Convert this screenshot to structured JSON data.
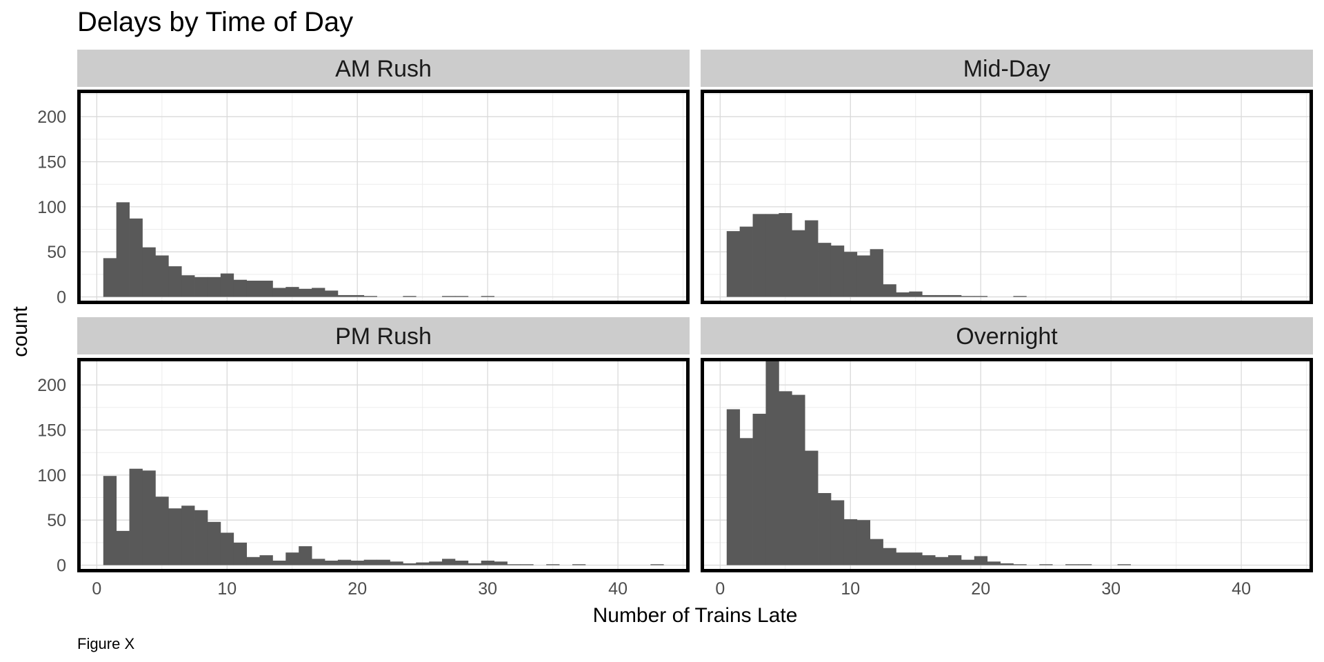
{
  "chart_data": {
    "type": "bar",
    "title": "Delays by Time of Day",
    "xlabel": "Number of Trains Late",
    "ylabel": "count",
    "caption": "Figure X",
    "xlim": [
      -1.5,
      45.5
    ],
    "ylim": [
      -8,
      230
    ],
    "x_ticks": [
      0,
      10,
      20,
      30,
      40
    ],
    "y_ticks": [
      0,
      50,
      100,
      150,
      200
    ],
    "bin_width": 1,
    "bin_start": 0.5,
    "grid": true,
    "facet_layout": "2x2",
    "bar_color": "#595959",
    "panels": [
      {
        "name": "AM Rush",
        "counts": [
          43,
          105,
          87,
          55,
          46,
          34,
          24,
          22,
          22,
          26,
          19,
          18,
          18,
          10,
          11,
          9,
          10,
          7,
          2,
          2,
          1,
          0,
          0,
          1,
          0,
          0,
          1,
          1,
          0,
          1
        ]
      },
      {
        "name": "Mid-Day",
        "counts": [
          73,
          78,
          92,
          92,
          93,
          74,
          85,
          60,
          57,
          50,
          46,
          53,
          14,
          5,
          6,
          2,
          2,
          2,
          1,
          1,
          0,
          0,
          1
        ]
      },
      {
        "name": "PM Rush",
        "counts": [
          99,
          38,
          107,
          105,
          76,
          63,
          66,
          61,
          48,
          36,
          25,
          9,
          11,
          5,
          14,
          21,
          7,
          5,
          6,
          5,
          6,
          6,
          4,
          2,
          3,
          4,
          7,
          5,
          2,
          5,
          4,
          1,
          1,
          0,
          1,
          0,
          1,
          0,
          0,
          0,
          0,
          0,
          1
        ]
      },
      {
        "name": "Overnight",
        "counts": [
          173,
          141,
          168,
          227,
          193,
          189,
          127,
          80,
          72,
          51,
          50,
          29,
          19,
          14,
          14,
          11,
          9,
          11,
          6,
          10,
          4,
          2,
          1,
          0,
          1,
          0,
          1,
          1,
          0,
          0,
          1
        ]
      }
    ]
  }
}
